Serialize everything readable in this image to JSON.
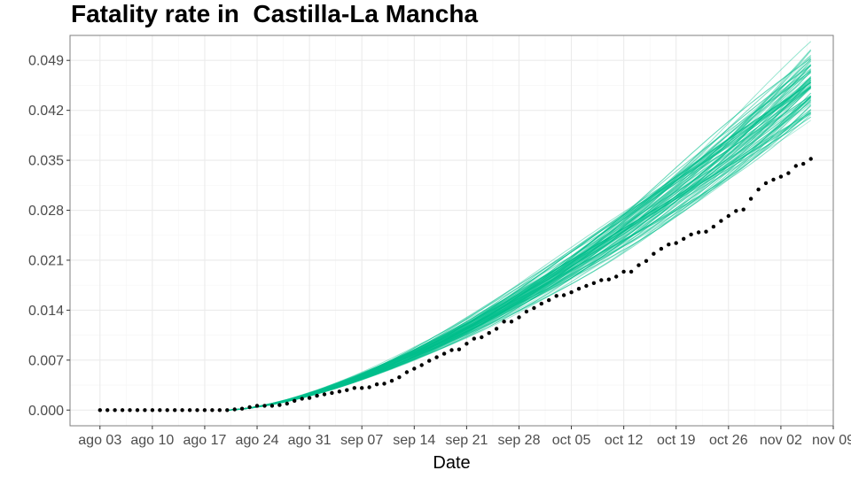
{
  "chart_data": {
    "type": "line",
    "title": "Fatality rate in  Castilla-La Mancha",
    "xlabel": "Date",
    "ylabel": "",
    "x_axis": {
      "type": "date",
      "range": [
        "2020-07-30",
        "2020-11-09"
      ],
      "tick_dates": [
        "2020-08-03",
        "2020-08-10",
        "2020-08-17",
        "2020-08-24",
        "2020-08-31",
        "2020-09-07",
        "2020-09-14",
        "2020-09-21",
        "2020-09-28",
        "2020-10-05",
        "2020-10-12",
        "2020-10-19",
        "2020-10-26",
        "2020-11-02",
        "2020-11-09"
      ],
      "tick_labels": [
        "ago 03",
        "ago 10",
        "ago 17",
        "ago 24",
        "ago 31",
        "sep 07",
        "sep 14",
        "sep 21",
        "sep 28",
        "oct 05",
        "oct 12",
        "oct 19",
        "oct 26",
        "nov 02",
        "nov 09"
      ]
    },
    "y_axis": {
      "range": [
        -0.0022,
        0.0525
      ],
      "ticks": [
        0.0,
        0.007,
        0.014,
        0.021,
        0.028,
        0.035,
        0.042,
        0.049
      ],
      "tick_labels": [
        "0.000",
        "0.007",
        "0.014",
        "0.021",
        "0.028",
        "0.035",
        "0.042",
        "0.049"
      ]
    },
    "grid": true,
    "colors": {
      "simulations": "#00BF8C",
      "observed": "#000000",
      "panel_border": "#7f7f7f",
      "grid_major": "#ebebeb",
      "grid_minor": "#f5f5f5"
    },
    "series": [
      {
        "kind": "simulated-lines",
        "count": 90,
        "spread": "band around the observed trend, narrow at start and widening to about 0.041–0.050 at the end",
        "x_range": [
          "2020-08-20",
          "2020-11-06"
        ]
      },
      {
        "kind": "observed-points",
        "points": [
          [
            "2020-08-03",
            0.0
          ],
          [
            "2020-08-04",
            0.0
          ],
          [
            "2020-08-05",
            0.0
          ],
          [
            "2020-08-06",
            0.0
          ],
          [
            "2020-08-07",
            0.0
          ],
          [
            "2020-08-08",
            0.0
          ],
          [
            "2020-08-09",
            0.0
          ],
          [
            "2020-08-10",
            0.0
          ],
          [
            "2020-08-11",
            0.0
          ],
          [
            "2020-08-12",
            0.0
          ],
          [
            "2020-08-13",
            0.0
          ],
          [
            "2020-08-14",
            0.0
          ],
          [
            "2020-08-15",
            0.0
          ],
          [
            "2020-08-16",
            0.0
          ],
          [
            "2020-08-17",
            0.0
          ],
          [
            "2020-08-18",
            0.0
          ],
          [
            "2020-08-19",
            0.0
          ],
          [
            "2020-08-20",
            0.0
          ],
          [
            "2020-08-21",
            0.0001
          ],
          [
            "2020-08-22",
            0.0002
          ],
          [
            "2020-08-23",
            0.0004
          ],
          [
            "2020-08-24",
            0.0006
          ],
          [
            "2020-08-25",
            0.0006
          ],
          [
            "2020-08-26",
            0.0006
          ],
          [
            "2020-08-27",
            0.0007
          ],
          [
            "2020-08-28",
            0.0009
          ],
          [
            "2020-08-29",
            0.0013
          ],
          [
            "2020-08-30",
            0.0016
          ],
          [
            "2020-08-31",
            0.0017
          ],
          [
            "2020-09-01",
            0.002
          ],
          [
            "2020-09-02",
            0.0022
          ],
          [
            "2020-09-03",
            0.0024
          ],
          [
            "2020-09-04",
            0.0026
          ],
          [
            "2020-09-05",
            0.0028
          ],
          [
            "2020-09-06",
            0.0031
          ],
          [
            "2020-09-07",
            0.0031
          ],
          [
            "2020-09-08",
            0.0032
          ],
          [
            "2020-09-09",
            0.0036
          ],
          [
            "2020-09-10",
            0.0037
          ],
          [
            "2020-09-11",
            0.0041
          ],
          [
            "2020-09-12",
            0.0046
          ],
          [
            "2020-09-13",
            0.0053
          ],
          [
            "2020-09-14",
            0.0058
          ],
          [
            "2020-09-15",
            0.0063
          ],
          [
            "2020-09-16",
            0.0069
          ],
          [
            "2020-09-17",
            0.0074
          ],
          [
            "2020-09-18",
            0.0079
          ],
          [
            "2020-09-19",
            0.0084
          ],
          [
            "2020-09-20",
            0.0085
          ],
          [
            "2020-09-21",
            0.0093
          ],
          [
            "2020-09-22",
            0.01
          ],
          [
            "2020-09-23",
            0.0102
          ],
          [
            "2020-09-24",
            0.0108
          ],
          [
            "2020-09-25",
            0.0114
          ],
          [
            "2020-09-26",
            0.0124
          ],
          [
            "2020-09-27",
            0.0124
          ],
          [
            "2020-09-28",
            0.013
          ],
          [
            "2020-09-29",
            0.0138
          ],
          [
            "2020-09-30",
            0.0143
          ],
          [
            "2020-10-01",
            0.0149
          ],
          [
            "2020-10-02",
            0.0154
          ],
          [
            "2020-10-03",
            0.016
          ],
          [
            "2020-10-04",
            0.0161
          ],
          [
            "2020-10-05",
            0.0165
          ],
          [
            "2020-10-06",
            0.017
          ],
          [
            "2020-10-07",
            0.0174
          ],
          [
            "2020-10-08",
            0.0178
          ],
          [
            "2020-10-09",
            0.0182
          ],
          [
            "2020-10-10",
            0.0183
          ],
          [
            "2020-10-11",
            0.0187
          ],
          [
            "2020-10-12",
            0.0194
          ],
          [
            "2020-10-13",
            0.0194
          ],
          [
            "2020-10-14",
            0.0203
          ],
          [
            "2020-10-15",
            0.0209
          ],
          [
            "2020-10-16",
            0.0219
          ],
          [
            "2020-10-17",
            0.0226
          ],
          [
            "2020-10-18",
            0.0232
          ],
          [
            "2020-10-19",
            0.0234
          ],
          [
            "2020-10-20",
            0.024
          ],
          [
            "2020-10-21",
            0.0246
          ],
          [
            "2020-10-22",
            0.0249
          ],
          [
            "2020-10-23",
            0.025
          ],
          [
            "2020-10-24",
            0.0257
          ],
          [
            "2020-10-25",
            0.0265
          ],
          [
            "2020-10-26",
            0.0272
          ],
          [
            "2020-10-27",
            0.0279
          ],
          [
            "2020-10-28",
            0.0281
          ],
          [
            "2020-10-29",
            0.0296
          ],
          [
            "2020-10-30",
            0.0309
          ],
          [
            "2020-10-31",
            0.0318
          ],
          [
            "2020-11-01",
            0.0323
          ],
          [
            "2020-11-02",
            0.0327
          ],
          [
            "2020-11-03",
            0.0332
          ],
          [
            "2020-11-04",
            0.0342
          ],
          [
            "2020-11-05",
            0.0345
          ],
          [
            "2020-11-06",
            0.0352
          ]
        ]
      }
    ]
  }
}
